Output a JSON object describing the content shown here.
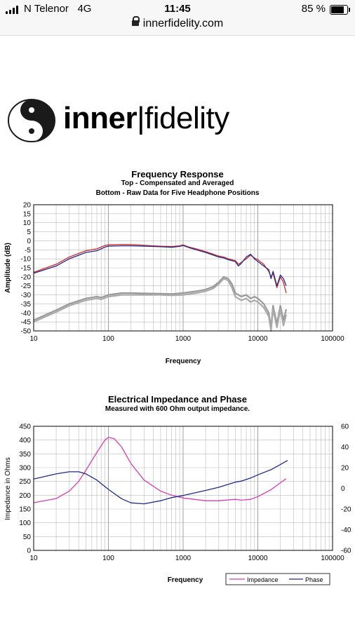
{
  "status_bar": {
    "carrier": "N Telenor",
    "network": "4G",
    "time": "11:45",
    "battery": "85 %"
  },
  "browser": {
    "url": "innerfidelity.com"
  },
  "logo": {
    "bold": "inner",
    "separator": "|",
    "rest": "fidelity"
  },
  "chart_data": [
    {
      "type": "line",
      "title": "Frequency Response",
      "subtitle1": "Top -  Compensated and Averaged",
      "subtitle2": "Bottom - Raw Data for Five Headphone Positions",
      "xlabel": "Frequency",
      "ylabel": "Amplitude (dB)",
      "x_scale": "log",
      "xlim": [
        10,
        100000
      ],
      "ylim": [
        -50,
        20
      ],
      "x_ticks": [
        "10",
        "100",
        "1000",
        "10000",
        "100000"
      ],
      "y_ticks": [
        "20",
        "15",
        "10",
        "5",
        "0",
        "-5",
        "-10",
        "-15",
        "-20",
        "-25",
        "-30",
        "-35",
        "-40",
        "-45",
        "-50"
      ],
      "grid": true,
      "series": [
        {
          "color": "#d62728",
          "values": [
            [
              10,
              -17.5
            ],
            [
              20,
              -13
            ],
            [
              30,
              -9
            ],
            [
              50,
              -5.5
            ],
            [
              70,
              -4.5
            ],
            [
              80,
              -3.5
            ],
            [
              90,
              -2.6
            ],
            [
              100,
              -2.3
            ],
            [
              150,
              -2
            ],
            [
              200,
              -2.1
            ],
            [
              300,
              -2.5
            ],
            [
              500,
              -3
            ],
            [
              700,
              -3.2
            ],
            [
              900,
              -2.8
            ],
            [
              1000,
              -2.3
            ],
            [
              1200,
              -3.5
            ],
            [
              1500,
              -4.5
            ],
            [
              2000,
              -6
            ],
            [
              3000,
              -8.5
            ],
            [
              3500,
              -9
            ],
            [
              4000,
              -10
            ],
            [
              5000,
              -11
            ],
            [
              5500,
              -13
            ],
            [
              6000,
              -12
            ],
            [
              7000,
              -10
            ],
            [
              8000,
              -8
            ],
            [
              9000,
              -9.5
            ],
            [
              10000,
              -10.5
            ],
            [
              12000,
              -13
            ],
            [
              14000,
              -17
            ],
            [
              15000,
              -20
            ],
            [
              16000,
              -18
            ],
            [
              18000,
              -26
            ],
            [
              20000,
              -20
            ],
            [
              22000,
              -23
            ],
            [
              24000,
              -29
            ]
          ]
        },
        {
          "color": "#1f2a8a",
          "values": [
            [
              10,
              -18
            ],
            [
              20,
              -14
            ],
            [
              30,
              -10
            ],
            [
              50,
              -6.5
            ],
            [
              70,
              -5.5
            ],
            [
              80,
              -4.5
            ],
            [
              90,
              -3.5
            ],
            [
              100,
              -3
            ],
            [
              150,
              -2.8
            ],
            [
              200,
              -2.8
            ],
            [
              300,
              -3
            ],
            [
              500,
              -3.3
            ],
            [
              700,
              -3.6
            ],
            [
              900,
              -3.1
            ],
            [
              1000,
              -2.6
            ],
            [
              1200,
              -3.8
            ],
            [
              1500,
              -5
            ],
            [
              2000,
              -6.5
            ],
            [
              3000,
              -9
            ],
            [
              3500,
              -9.5
            ],
            [
              4000,
              -10.5
            ],
            [
              5000,
              -11.5
            ],
            [
              5500,
              -14
            ],
            [
              6000,
              -12.5
            ],
            [
              7000,
              -9
            ],
            [
              8000,
              -7.5
            ],
            [
              9000,
              -10
            ],
            [
              10000,
              -11.5
            ],
            [
              12000,
              -14
            ],
            [
              14000,
              -16
            ],
            [
              15000,
              -21
            ],
            [
              16000,
              -17
            ],
            [
              18000,
              -25
            ],
            [
              20000,
              -19
            ],
            [
              22000,
              -21
            ],
            [
              24000,
              -25
            ]
          ]
        },
        {
          "color": "#999999",
          "values": [
            [
              10,
              -44
            ],
            [
              20,
              -38.5
            ],
            [
              30,
              -35
            ],
            [
              50,
              -32
            ],
            [
              70,
              -31
            ],
            [
              80,
              -31.5
            ],
            [
              100,
              -30
            ],
            [
              150,
              -29
            ],
            [
              200,
              -29
            ],
            [
              300,
              -29.2
            ],
            [
              500,
              -29.3
            ],
            [
              700,
              -29.5
            ],
            [
              1000,
              -29
            ],
            [
              1500,
              -28
            ],
            [
              2000,
              -27
            ],
            [
              2500,
              -25.5
            ],
            [
              3000,
              -23
            ],
            [
              3500,
              -20
            ],
            [
              4000,
              -21
            ],
            [
              4500,
              -24
            ],
            [
              5000,
              -29
            ],
            [
              6000,
              -31
            ],
            [
              7000,
              -30
            ],
            [
              8000,
              -32
            ],
            [
              9000,
              -31
            ],
            [
              10000,
              -32
            ],
            [
              12000,
              -35
            ],
            [
              14000,
              -40
            ],
            [
              15000,
              -48
            ],
            [
              16000,
              -36
            ],
            [
              18000,
              -46
            ],
            [
              20000,
              -36
            ],
            [
              22000,
              -44
            ],
            [
              24000,
              -38
            ]
          ]
        },
        {
          "color": "#aaaaaa",
          "values": [
            [
              10,
              -45
            ],
            [
              20,
              -39.5
            ],
            [
              30,
              -36
            ],
            [
              50,
              -33
            ],
            [
              70,
              -32
            ],
            [
              80,
              -32.5
            ],
            [
              100,
              -31
            ],
            [
              150,
              -30
            ],
            [
              200,
              -30
            ],
            [
              300,
              -30
            ],
            [
              500,
              -30
            ],
            [
              700,
              -30.3
            ],
            [
              1000,
              -30
            ],
            [
              1500,
              -29
            ],
            [
              2000,
              -28
            ],
            [
              2500,
              -26.5
            ],
            [
              3000,
              -24
            ],
            [
              3500,
              -21
            ],
            [
              4000,
              -22
            ],
            [
              4500,
              -26
            ],
            [
              5000,
              -31
            ],
            [
              6000,
              -33
            ],
            [
              7000,
              -32
            ],
            [
              8000,
              -34
            ],
            [
              9000,
              -33
            ],
            [
              10000,
              -34
            ],
            [
              12000,
              -37
            ],
            [
              14000,
              -42
            ],
            [
              15000,
              -50
            ],
            [
              16000,
              -38
            ],
            [
              18000,
              -48
            ],
            [
              20000,
              -38
            ],
            [
              22000,
              -47
            ],
            [
              24000,
              -41
            ]
          ]
        }
      ]
    },
    {
      "type": "line",
      "title": "Electrical Impedance and Phase",
      "subtitle": "Measured with 600 Ohm output impedance.",
      "xlabel": "Frequency",
      "ylabel": "Impedance in Ohms",
      "x_scale": "log",
      "xlim": [
        10,
        100000
      ],
      "ylim": [
        0,
        450
      ],
      "y2lim": [
        -60,
        60
      ],
      "x_ticks": [
        "10",
        "100",
        "1000",
        "10000",
        "100000"
      ],
      "y_ticks": [
        "450",
        "400",
        "350",
        "300",
        "250",
        "200",
        "150",
        "100",
        "50",
        "0"
      ],
      "y2_ticks": [
        "60",
        "40",
        "20",
        "0",
        "-20",
        "-40",
        "-60"
      ],
      "grid": true,
      "legend": "bottom-right",
      "series": [
        {
          "name": "Impedance",
          "color": "#d63fae",
          "axis": "left",
          "values": [
            [
              10,
              173
            ],
            [
              20,
              188
            ],
            [
              30,
              215
            ],
            [
              40,
              250
            ],
            [
              50,
              290
            ],
            [
              70,
              355
            ],
            [
              90,
              400
            ],
            [
              100,
              410
            ],
            [
              120,
              405
            ],
            [
              150,
              375
            ],
            [
              200,
              315
            ],
            [
              300,
              255
            ],
            [
              500,
              215
            ],
            [
              700,
              200
            ],
            [
              1000,
              190
            ],
            [
              2000,
              180
            ],
            [
              3000,
              180
            ],
            [
              5000,
              185
            ],
            [
              6000,
              182
            ],
            [
              8000,
              185
            ],
            [
              10000,
              195
            ],
            [
              15000,
              220
            ],
            [
              20000,
              245
            ],
            [
              24000,
              260
            ]
          ]
        },
        {
          "name": "Phase",
          "color": "#1f2a8a",
          "axis": "right",
          "values": [
            [
              10,
              9
            ],
            [
              20,
              14
            ],
            [
              30,
              16
            ],
            [
              40,
              16
            ],
            [
              50,
              14
            ],
            [
              70,
              8
            ],
            [
              100,
              -1
            ],
            [
              150,
              -10
            ],
            [
              200,
              -14
            ],
            [
              300,
              -15
            ],
            [
              500,
              -12
            ],
            [
              700,
              -9
            ],
            [
              1000,
              -7
            ],
            [
              2000,
              -2
            ],
            [
              3000,
              1
            ],
            [
              5000,
              6
            ],
            [
              6000,
              7
            ],
            [
              8000,
              10
            ],
            [
              10000,
              13
            ],
            [
              15000,
              18
            ],
            [
              20000,
              23
            ],
            [
              25000,
              27
            ]
          ]
        }
      ]
    }
  ]
}
